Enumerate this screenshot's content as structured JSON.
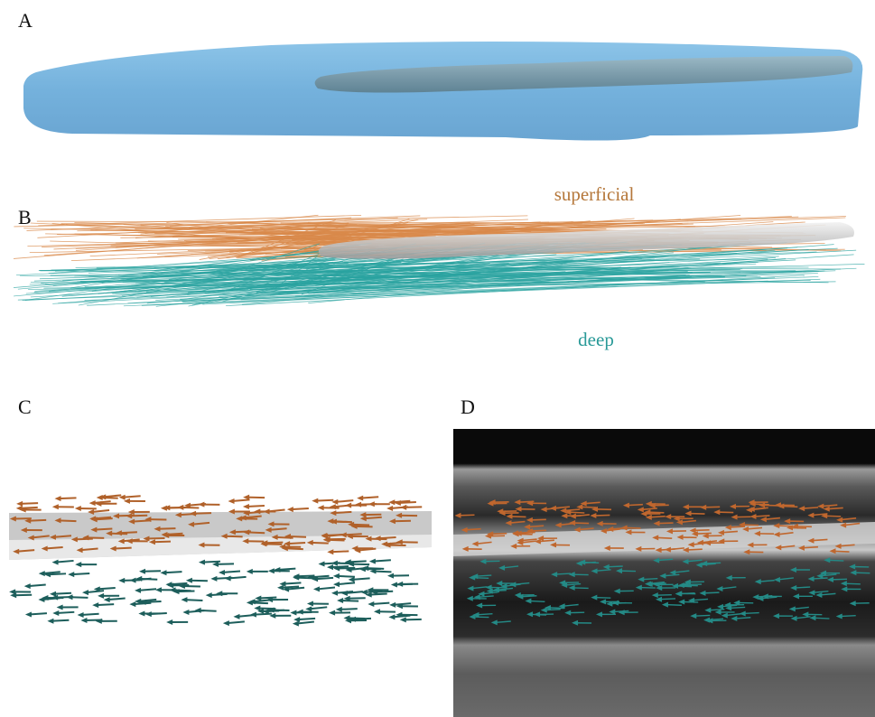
{
  "panels": [
    {
      "label": "A"
    },
    {
      "label": "B",
      "annotations": [
        "superficial",
        "deep"
      ]
    },
    {
      "label": "C"
    },
    {
      "label": "D"
    }
  ]
}
